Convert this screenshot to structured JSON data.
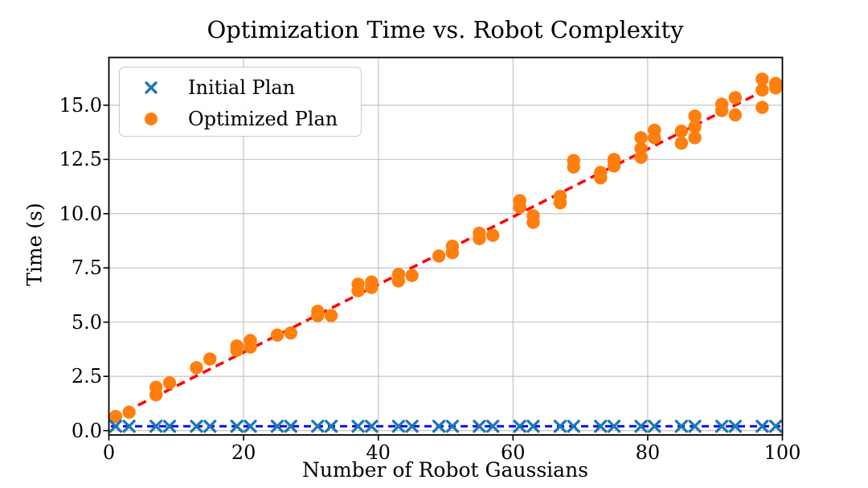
{
  "figure": {
    "title": "Optimization Time vs. Robot Complexity",
    "xlabel": "Number of Robot Gaussians",
    "ylabel": "Time (s)",
    "legend": {
      "position": "upper-left",
      "items": [
        {
          "label": "Initial Plan",
          "marker": "x",
          "color": "#1f77b4"
        },
        {
          "label": "Optimized Plan",
          "marker": "circle",
          "color": "#ff7f0e"
        }
      ]
    }
  },
  "chart_data": {
    "type": "scatter",
    "title": "Optimization Time vs. Robot Complexity",
    "xlabel": "Number of Robot Gaussians",
    "ylabel": "Time (s)",
    "xlim": [
      0,
      100
    ],
    "ylim": [
      -0.2,
      17.2
    ],
    "x_ticks": [
      0,
      20,
      40,
      60,
      80,
      100
    ],
    "x_tick_labels": [
      "0",
      "20",
      "40",
      "60",
      "80",
      "100"
    ],
    "y_ticks": [
      0,
      2.5,
      5,
      7.5,
      10,
      12.5,
      15
    ],
    "y_tick_labels": [
      "0.0",
      "2.5",
      "5.0",
      "7.5",
      "10.0",
      "12.5",
      "15.0"
    ],
    "grid": true,
    "style": {
      "grid_color": "#c4c4c4",
      "spine_color": "#000000",
      "background": "#ffffff"
    },
    "series": [
      {
        "name": "Initial Plan",
        "marker": "x",
        "color": "#1f77b4",
        "points": [
          [
            1,
            0.2
          ],
          [
            3,
            0.2
          ],
          [
            7,
            0.2
          ],
          [
            9,
            0.2
          ],
          [
            13,
            0.2
          ],
          [
            15,
            0.2
          ],
          [
            19,
            0.2
          ],
          [
            21,
            0.2
          ],
          [
            25,
            0.2
          ],
          [
            27,
            0.2
          ],
          [
            31,
            0.2
          ],
          [
            33,
            0.2
          ],
          [
            37,
            0.2
          ],
          [
            39,
            0.2
          ],
          [
            43,
            0.2
          ],
          [
            45,
            0.2
          ],
          [
            49,
            0.2
          ],
          [
            51,
            0.2
          ],
          [
            55,
            0.2
          ],
          [
            57,
            0.2
          ],
          [
            61,
            0.2
          ],
          [
            63,
            0.2
          ],
          [
            67,
            0.2
          ],
          [
            69,
            0.2
          ],
          [
            73,
            0.2
          ],
          [
            75,
            0.2
          ],
          [
            79,
            0.2
          ],
          [
            81,
            0.2
          ],
          [
            85,
            0.2
          ],
          [
            87,
            0.2
          ],
          [
            91,
            0.2
          ],
          [
            93,
            0.2
          ],
          [
            97,
            0.2
          ],
          [
            99,
            0.2
          ]
        ]
      },
      {
        "name": "Optimized Plan",
        "marker": "circle",
        "color": "#ff7f0e",
        "points": [
          [
            1,
            0.65
          ],
          [
            3,
            0.85
          ],
          [
            7,
            1.65
          ],
          [
            7,
            2.0
          ],
          [
            9,
            2.2
          ],
          [
            13,
            2.9
          ],
          [
            15,
            3.3
          ],
          [
            19,
            3.7
          ],
          [
            19,
            3.9
          ],
          [
            21,
            3.85
          ],
          [
            21,
            4.15
          ],
          [
            25,
            4.4
          ],
          [
            27,
            4.5
          ],
          [
            31,
            5.3
          ],
          [
            31,
            5.5
          ],
          [
            33,
            5.3
          ],
          [
            37,
            6.45
          ],
          [
            37,
            6.75
          ],
          [
            39,
            6.6
          ],
          [
            39,
            6.85
          ],
          [
            43,
            6.9
          ],
          [
            43,
            7.2
          ],
          [
            45,
            7.15
          ],
          [
            49,
            8.05
          ],
          [
            51,
            8.2
          ],
          [
            51,
            8.5
          ],
          [
            55,
            8.85
          ],
          [
            55,
            9.1
          ],
          [
            57,
            9.0
          ],
          [
            61,
            10.3
          ],
          [
            61,
            10.6
          ],
          [
            63,
            9.6
          ],
          [
            63,
            9.9
          ],
          [
            67,
            10.5
          ],
          [
            67,
            10.8
          ],
          [
            69,
            12.15
          ],
          [
            69,
            12.45
          ],
          [
            73,
            11.65
          ],
          [
            73,
            11.9
          ],
          [
            75,
            12.2
          ],
          [
            75,
            12.5
          ],
          [
            79,
            12.6
          ],
          [
            79,
            13.0
          ],
          [
            79,
            13.5
          ],
          [
            81,
            13.5
          ],
          [
            81,
            13.85
          ],
          [
            85,
            13.25
          ],
          [
            85,
            13.8
          ],
          [
            87,
            13.5
          ],
          [
            87,
            14.0
          ],
          [
            87,
            14.5
          ],
          [
            91,
            14.75
          ],
          [
            91,
            15.05
          ],
          [
            93,
            14.55
          ],
          [
            93,
            15.35
          ],
          [
            97,
            14.9
          ],
          [
            97,
            15.7
          ],
          [
            97,
            16.2
          ],
          [
            99,
            15.8
          ],
          [
            99,
            16.0
          ]
        ]
      }
    ],
    "trend_lines": [
      {
        "name": "initial-plan-fit",
        "color": "#0000ff",
        "pattern": "dashed",
        "points": [
          [
            0.3,
            0.2
          ],
          [
            99.7,
            0.2
          ]
        ]
      },
      {
        "name": "optimized-plan-fit",
        "color": "#ff0000",
        "pattern": "dashed",
        "points": [
          [
            0.5,
            0.57
          ],
          [
            99.5,
            16.02
          ]
        ]
      }
    ]
  }
}
